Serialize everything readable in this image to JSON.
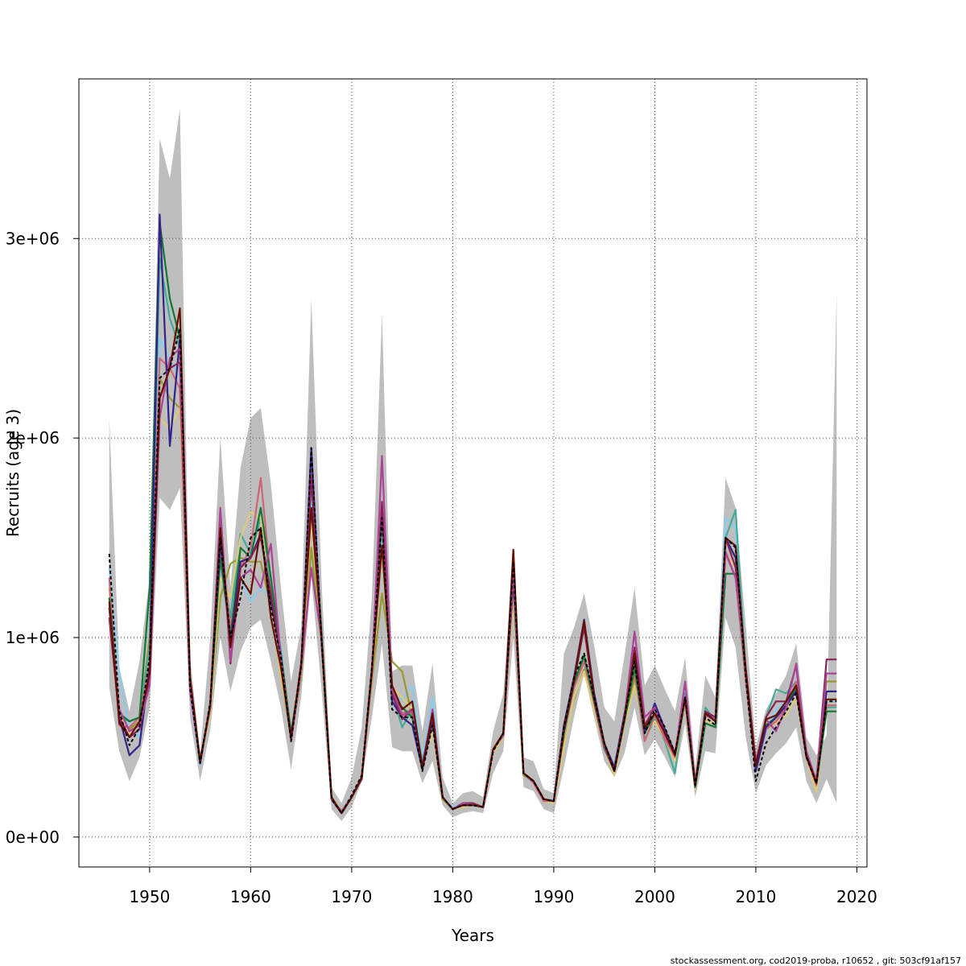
{
  "chart_data": {
    "type": "line",
    "xlabel": "Years",
    "ylabel": "Recruits (age 3)",
    "xlim": [
      1943,
      2021
    ],
    "ylim": [
      -150000,
      3800000
    ],
    "x_ticks": [
      1950,
      1960,
      1970,
      1980,
      1990,
      2000,
      2010,
      2020
    ],
    "x_tick_labels": [
      "1950",
      "1960",
      "1970",
      "1980",
      "1990",
      "2000",
      "2010",
      "2020"
    ],
    "y_ticks": [
      0,
      1000000,
      2000000,
      3000000
    ],
    "y_tick_labels": [
      "0e+00",
      "1e+06",
      "2e+06",
      "3e+06"
    ],
    "grid": "dotted",
    "x": [
      1946,
      1947,
      1948,
      1949,
      1950,
      1951,
      1952,
      1953,
      1954,
      1955,
      1956,
      1957,
      1958,
      1959,
      1960,
      1961,
      1962,
      1963,
      1964,
      1965,
      1966,
      1967,
      1968,
      1969,
      1970,
      1971,
      1972,
      1973,
      1974,
      1975,
      1976,
      1977,
      1978,
      1979,
      1980,
      1981,
      1982,
      1983,
      1984,
      1985,
      1986,
      1987,
      1988,
      1989,
      1990,
      1991,
      1992,
      1993,
      1994,
      1995,
      1996,
      1997,
      1998,
      1999,
      2000,
      2001,
      2002,
      2003,
      2004,
      2005,
      2006,
      2007,
      2008,
      2009,
      2010,
      2011,
      2012,
      2013,
      2014,
      2015,
      2016,
      2017,
      2018
    ],
    "band": {
      "name": "Confidence interval",
      "lower": [
        750000,
        430000,
        280000,
        400000,
        650000,
        1700000,
        1640000,
        1750000,
        600000,
        280000,
        540000,
        1000000,
        730000,
        930000,
        1050000,
        1090000,
        880000,
        650000,
        340000,
        700000,
        1300000,
        750000,
        140000,
        80000,
        150000,
        280000,
        600000,
        970000,
        450000,
        430000,
        430000,
        270000,
        380000,
        160000,
        100000,
        120000,
        130000,
        120000,
        320000,
        430000,
        1000000,
        250000,
        230000,
        140000,
        120000,
        350000,
        600000,
        820000,
        600000,
        380000,
        300000,
        420000,
        650000,
        410000,
        490000,
        400000,
        300000,
        570000,
        200000,
        430000,
        420000,
        1100000,
        950000,
        500000,
        220000,
        360000,
        420000,
        470000,
        550000,
        280000,
        170000,
        290000,
        170000
      ],
      "upper": [
        2100000,
        850000,
        630000,
        880000,
        1300000,
        3500000,
        3300000,
        3650000,
        900000,
        420000,
        1000000,
        2000000,
        1250000,
        1850000,
        2100000,
        2150000,
        1770000,
        1250000,
        780000,
        1050000,
        2700000,
        1300000,
        250000,
        170000,
        300000,
        550000,
        1200000,
        2620000,
        830000,
        860000,
        860000,
        530000,
        870000,
        300000,
        170000,
        220000,
        230000,
        200000,
        530000,
        720000,
        1450000,
        400000,
        380000,
        240000,
        220000,
        920000,
        1050000,
        1220000,
        960000,
        650000,
        580000,
        910000,
        1250000,
        760000,
        860000,
        740000,
        630000,
        900000,
        340000,
        810000,
        700000,
        1800000,
        1650000,
        1060000,
        450000,
        640000,
        720000,
        810000,
        970000,
        500000,
        410000,
        510000,
        2720000
      ]
    },
    "series": [
      {
        "name": "Black dashed",
        "color": "#000000",
        "dash": true,
        "values": [
          1420000,
          630000,
          460000,
          550000,
          900000,
          2300000,
          2350000,
          2550000,
          750000,
          370000,
          680000,
          1500000,
          1000000,
          1200000,
          1500000,
          1550000,
          1150000,
          900000,
          480000,
          860000,
          1950000,
          1000000,
          190000,
          120000,
          210000,
          310000,
          850000,
          1600000,
          640000,
          600000,
          600000,
          330000,
          560000,
          200000,
          140000,
          160000,
          160000,
          150000,
          430000,
          520000,
          1380000,
          320000,
          280000,
          190000,
          180000,
          550000,
          800000,
          920000,
          700000,
          470000,
          330000,
          600000,
          880000,
          520000,
          640000,
          550000,
          420000,
          700000,
          260000,
          600000,
          560000,
          1500000,
          1450000,
          800000,
          280000,
          470000,
          550000,
          630000,
          720000,
          400000,
          270000,
          680000,
          680000
        ]
      },
      {
        "name": "Skyblue",
        "color": "#88ccee",
        "values": [
          1350000,
          820000,
          540000,
          500000,
          850000,
          2500000,
          2400000,
          2300000,
          720000,
          360000,
          660000,
          1450000,
          1050000,
          1300000,
          1180000,
          1250000,
          1200000,
          950000,
          500000,
          850000,
          1700000,
          1000000,
          190000,
          130000,
          210000,
          290000,
          830000,
          1550000,
          700000,
          690000,
          760000,
          390000,
          700000,
          200000,
          150000,
          170000,
          160000,
          150000,
          420000,
          500000,
          1220000,
          310000,
          270000,
          180000,
          190000,
          500000,
          760000,
          880000,
          660000,
          430000,
          340000,
          560000,
          840000,
          510000,
          620000,
          520000,
          380000,
          680000,
          250000,
          630000,
          580000,
          1600000,
          1550000,
          820000,
          330000,
          530000,
          640000,
          680000,
          740000,
          400000,
          280000,
          690000,
          680000
        ]
      },
      {
        "name": "Olive",
        "color": "#999933",
        "values": [
          1150000,
          600000,
          540000,
          580000,
          1000000,
          2300000,
          2200000,
          2150000,
          750000,
          390000,
          640000,
          1200000,
          1370000,
          1400000,
          1380000,
          1380000,
          1150000,
          800000,
          500000,
          800000,
          1450000,
          980000,
          200000,
          130000,
          200000,
          300000,
          780000,
          1220000,
          880000,
          830000,
          600000,
          340000,
          580000,
          190000,
          140000,
          160000,
          160000,
          150000,
          420000,
          500000,
          1250000,
          310000,
          280000,
          190000,
          170000,
          470000,
          690000,
          840000,
          670000,
          470000,
          320000,
          560000,
          800000,
          540000,
          580000,
          490000,
          380000,
          680000,
          250000,
          590000,
          560000,
          1480000,
          1400000,
          800000,
          330000,
          540000,
          600000,
          650000,
          750000,
          420000,
          240000,
          780000,
          780000
        ]
      },
      {
        "name": "Teal",
        "color": "#44aa99",
        "values": [
          1250000,
          600000,
          580000,
          600000,
          950000,
          2900000,
          2600000,
          2450000,
          740000,
          370000,
          640000,
          1400000,
          1100000,
          1520000,
          1420000,
          1600000,
          1220000,
          900000,
          510000,
          830000,
          1800000,
          1050000,
          200000,
          120000,
          200000,
          290000,
          830000,
          1620000,
          720000,
          550000,
          640000,
          380000,
          570000,
          200000,
          140000,
          160000,
          160000,
          150000,
          440000,
          520000,
          1300000,
          320000,
          280000,
          190000,
          180000,
          520000,
          760000,
          900000,
          680000,
          450000,
          330000,
          580000,
          850000,
          490000,
          590000,
          480000,
          320000,
          720000,
          250000,
          650000,
          580000,
          1500000,
          1640000,
          830000,
          350000,
          600000,
          740000,
          720000,
          780000,
          410000,
          280000,
          650000,
          650000
        ]
      },
      {
        "name": "Sand",
        "color": "#ddcc77",
        "values": [
          1250000,
          620000,
          520000,
          560000,
          880000,
          2100000,
          2050000,
          2150000,
          780000,
          380000,
          620000,
          1300000,
          1200000,
          1500000,
          1630000,
          1600000,
          1150000,
          800000,
          520000,
          820000,
          1600000,
          1000000,
          200000,
          130000,
          200000,
          290000,
          800000,
          1450000,
          750000,
          700000,
          640000,
          360000,
          530000,
          200000,
          140000,
          150000,
          160000,
          150000,
          420000,
          500000,
          1200000,
          320000,
          280000,
          180000,
          170000,
          450000,
          700000,
          830000,
          640000,
          440000,
          310000,
          560000,
          760000,
          520000,
          580000,
          490000,
          380000,
          700000,
          240000,
          590000,
          560000,
          1420000,
          1350000,
          790000,
          330000,
          550000,
          570000,
          610000,
          700000,
          390000,
          230000,
          690000,
          690000
        ]
      },
      {
        "name": "Rose",
        "color": "#cc6677",
        "values": [
          1300000,
          560000,
          550000,
          600000,
          870000,
          2400000,
          2350000,
          2250000,
          760000,
          370000,
          650000,
          1500000,
          1050000,
          1350000,
          1450000,
          1800000,
          1280000,
          880000,
          490000,
          840000,
          1900000,
          1020000,
          190000,
          120000,
          200000,
          300000,
          820000,
          1650000,
          700000,
          620000,
          640000,
          360000,
          570000,
          200000,
          140000,
          160000,
          160000,
          150000,
          440000,
          510000,
          1350000,
          320000,
          270000,
          180000,
          180000,
          520000,
          750000,
          880000,
          670000,
          440000,
          330000,
          590000,
          830000,
          480000,
          610000,
          490000,
          400000,
          690000,
          250000,
          620000,
          580000,
          1420000,
          1300000,
          780000,
          330000,
          540000,
          580000,
          650000,
          780000,
          400000,
          260000,
          660000,
          660000
        ]
      },
      {
        "name": "Green",
        "color": "#117733",
        "values": [
          1200000,
          620000,
          580000,
          600000,
          1250000,
          3080000,
          2700000,
          2500000,
          780000,
          370000,
          660000,
          1400000,
          1000000,
          1450000,
          1400000,
          1650000,
          1300000,
          920000,
          520000,
          850000,
          1800000,
          1030000,
          200000,
          120000,
          200000,
          290000,
          840000,
          1600000,
          700000,
          650000,
          600000,
          340000,
          600000,
          200000,
          140000,
          160000,
          160000,
          150000,
          440000,
          520000,
          1280000,
          320000,
          280000,
          190000,
          180000,
          520000,
          770000,
          910000,
          680000,
          450000,
          330000,
          580000,
          850000,
          520000,
          620000,
          540000,
          410000,
          700000,
          250000,
          570000,
          550000,
          1320000,
          1320000,
          820000,
          350000,
          560000,
          600000,
          660000,
          750000,
          410000,
          270000,
          630000,
          630000
        ]
      },
      {
        "name": "Navy",
        "color": "#332288",
        "values": [
          1150000,
          600000,
          410000,
          460000,
          850000,
          3120000,
          1960000,
          2500000,
          760000,
          370000,
          670000,
          1480000,
          980000,
          1380000,
          1400000,
          1520000,
          1180000,
          900000,
          490000,
          840000,
          1950000,
          1000000,
          190000,
          120000,
          200000,
          300000,
          850000,
          1660000,
          680000,
          600000,
          560000,
          340000,
          580000,
          200000,
          140000,
          160000,
          160000,
          150000,
          440000,
          510000,
          1300000,
          320000,
          280000,
          190000,
          180000,
          560000,
          800000,
          1090000,
          720000,
          470000,
          350000,
          620000,
          900000,
          530000,
          670000,
          540000,
          420000,
          700000,
          260000,
          630000,
          580000,
          1500000,
          1400000,
          830000,
          330000,
          550000,
          600000,
          660000,
          730000,
          400000,
          280000,
          730000,
          730000
        ]
      },
      {
        "name": "Wine",
        "color": "#882255",
        "values": [
          1100000,
          600000,
          500000,
          540000,
          800000,
          2200000,
          2350000,
          2380000,
          740000,
          380000,
          650000,
          1640000,
          870000,
          1350000,
          1400000,
          1500000,
          1220000,
          900000,
          490000,
          850000,
          1800000,
          1000000,
          200000,
          120000,
          200000,
          290000,
          820000,
          1680000,
          720000,
          590000,
          640000,
          350000,
          610000,
          200000,
          140000,
          170000,
          170000,
          150000,
          440000,
          510000,
          1320000,
          320000,
          280000,
          190000,
          180000,
          530000,
          780000,
          1050000,
          690000,
          460000,
          330000,
          590000,
          950000,
          560000,
          650000,
          520000,
          420000,
          700000,
          270000,
          630000,
          600000,
          1500000,
          1350000,
          840000,
          370000,
          600000,
          680000,
          680000,
          860000,
          420000,
          280000,
          890000,
          890000
        ]
      },
      {
        "name": "Purple",
        "color": "#aa4499",
        "values": [
          1150000,
          640000,
          530000,
          560000,
          760000,
          2100000,
          2400000,
          2450000,
          730000,
          380000,
          660000,
          1650000,
          880000,
          1300000,
          1340000,
          1250000,
          1470000,
          890000,
          480000,
          840000,
          1350000,
          1000000,
          190000,
          130000,
          200000,
          300000,
          830000,
          1910000,
          740000,
          610000,
          630000,
          360000,
          640000,
          200000,
          140000,
          170000,
          160000,
          150000,
          440000,
          510000,
          1330000,
          320000,
          280000,
          190000,
          180000,
          540000,
          780000,
          1080000,
          700000,
          460000,
          330000,
          610000,
          1030000,
          600000,
          650000,
          510000,
          410000,
          780000,
          270000,
          610000,
          590000,
          1430000,
          1300000,
          850000,
          380000,
          590000,
          530000,
          650000,
          870000,
          430000,
          280000,
          820000,
          820000
        ]
      },
      {
        "name": "Maroon",
        "color": "#661100",
        "values": [
          1180000,
          570000,
          500000,
          580000,
          820000,
          2200000,
          2350000,
          2650000,
          800000,
          380000,
          660000,
          1550000,
          950000,
          1300000,
          1220000,
          1550000,
          1100000,
          850000,
          500000,
          870000,
          1650000,
          1020000,
          200000,
          120000,
          200000,
          300000,
          830000,
          1460000,
          760000,
          640000,
          680000,
          350000,
          620000,
          200000,
          140000,
          160000,
          160000,
          150000,
          440000,
          520000,
          1440000,
          320000,
          280000,
          190000,
          180000,
          540000,
          780000,
          1080000,
          700000,
          470000,
          330000,
          600000,
          920000,
          550000,
          620000,
          520000,
          410000,
          700000,
          260000,
          620000,
          580000,
          1500000,
          1460000,
          840000,
          360000,
          590000,
          610000,
          680000,
          760000,
          410000,
          270000,
          690000,
          690000
        ]
      }
    ]
  },
  "footer_text": "stockassessment.org, cod2019-proba, r10652 , git: 503cf91af157"
}
